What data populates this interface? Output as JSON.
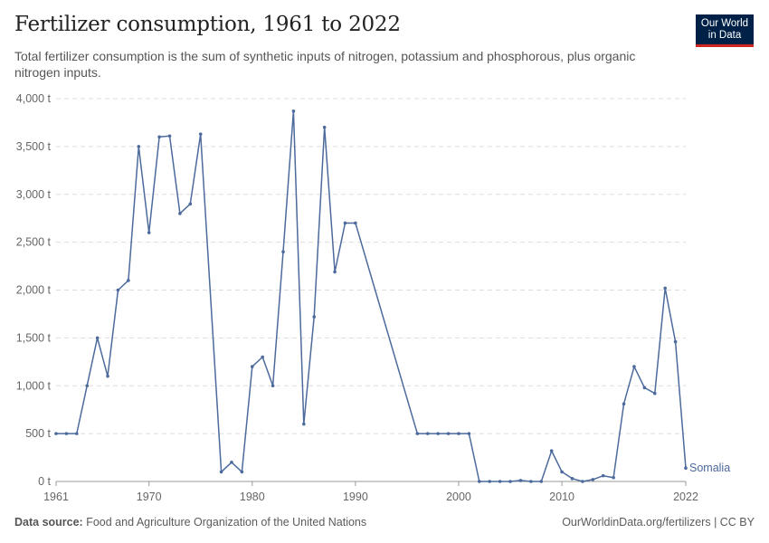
{
  "header": {
    "title": "Fertilizer consumption, 1961 to 2022",
    "subtitle": "Total fertilizer consumption is the sum of synthetic inputs of nitrogen, potassium and phosphorous, plus organic nitrogen inputs.",
    "logo_line1": "Our World",
    "logo_line2": "in Data"
  },
  "footer": {
    "source_label": "Data source:",
    "source_text": "Food and Agriculture Organization of the United Nations",
    "url_text": "OurWorldinData.org/fertilizers | CC BY"
  },
  "colors": {
    "series": "#4c6a9c",
    "grid": "#dddddd",
    "axis": "#666666"
  },
  "chart_data": {
    "type": "line",
    "title": "Fertilizer consumption, 1961 to 2022",
    "xlabel": "",
    "ylabel": "",
    "xlim": [
      1961,
      2022
    ],
    "ylim": [
      0,
      4000
    ],
    "grid": true,
    "y_ticks": [
      0,
      500,
      1000,
      1500,
      2000,
      2500,
      3000,
      3500,
      4000
    ],
    "y_tick_labels": [
      "0 t",
      "500 t",
      "1,000 t",
      "1,500 t",
      "2,000 t",
      "2,500 t",
      "3,000 t",
      "3,500 t",
      "4,000 t"
    ],
    "x_ticks": [
      1961,
      1970,
      1980,
      1990,
      2000,
      2010,
      2022
    ],
    "x_tick_labels": [
      "1961",
      "1970",
      "1980",
      "1990",
      "2000",
      "2010",
      "2022"
    ],
    "series": [
      {
        "name": "Somalia",
        "x": [
          1961,
          1962,
          1963,
          1964,
          1965,
          1966,
          1967,
          1968,
          1969,
          1970,
          1971,
          1972,
          1973,
          1974,
          1975,
          1977,
          1978,
          1979,
          1980,
          1981,
          1982,
          1983,
          1984,
          1985,
          1986,
          1987,
          1988,
          1989,
          1990,
          1996,
          1997,
          1998,
          1999,
          2000,
          2001,
          2002,
          2003,
          2004,
          2005,
          2006,
          2007,
          2008,
          2009,
          2010,
          2011,
          2012,
          2013,
          2014,
          2015,
          2016,
          2017,
          2018,
          2019,
          2020,
          2021,
          2022
        ],
        "values": [
          500,
          500,
          500,
          1000,
          1500,
          1100,
          2000,
          2100,
          3500,
          2600,
          3600,
          3610,
          2800,
          2900,
          3630,
          100,
          200,
          100,
          1200,
          1300,
          1000,
          2400,
          3870,
          600,
          1720,
          3700,
          2190,
          2700,
          2700,
          500,
          500,
          500,
          500,
          500,
          500,
          0,
          0,
          0,
          0,
          10,
          0,
          0,
          320,
          100,
          30,
          0,
          20,
          60,
          40,
          810,
          1200,
          980,
          920,
          2020,
          1460,
          140
        ]
      }
    ]
  }
}
